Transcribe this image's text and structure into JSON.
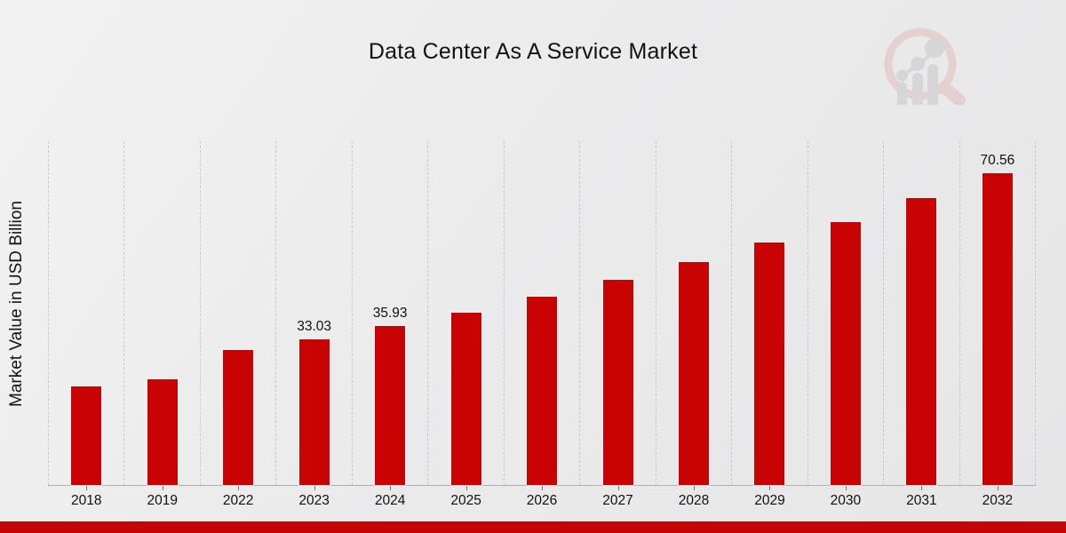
{
  "page": {
    "title": "Data Center As A Service Market"
  },
  "chart_data": {
    "type": "bar",
    "title": "Data Center As A Service Market",
    "xlabel": "",
    "ylabel": "Market Value in USD Billion",
    "categories": [
      "2018",
      "2019",
      "2022",
      "2023",
      "2024",
      "2025",
      "2026",
      "2027",
      "2028",
      "2029",
      "2030",
      "2031",
      "2032"
    ],
    "values": [
      22.3,
      23.9,
      30.6,
      33.03,
      35.93,
      39.1,
      42.6,
      46.4,
      50.4,
      54.8,
      59.6,
      65.0,
      70.56
    ],
    "value_labels": [
      "",
      "",
      "",
      "33.03",
      "35.93",
      "",
      "",
      "",
      "",
      "",
      "",
      "",
      "70.56"
    ],
    "ylim": [
      0,
      78
    ],
    "grid": "vertical-dashed",
    "legend_position": "none",
    "bar_color": "#C90303",
    "axis_line_color": "#b0b0b0",
    "gridline_color": "#c9c9cc"
  },
  "watermark": {
    "icon": "magnifier-bar-chart-logo",
    "ring_color": "#dfb3b3",
    "bars_color": "#c3c3c8"
  },
  "footer": {
    "band_color": "#C30505"
  }
}
